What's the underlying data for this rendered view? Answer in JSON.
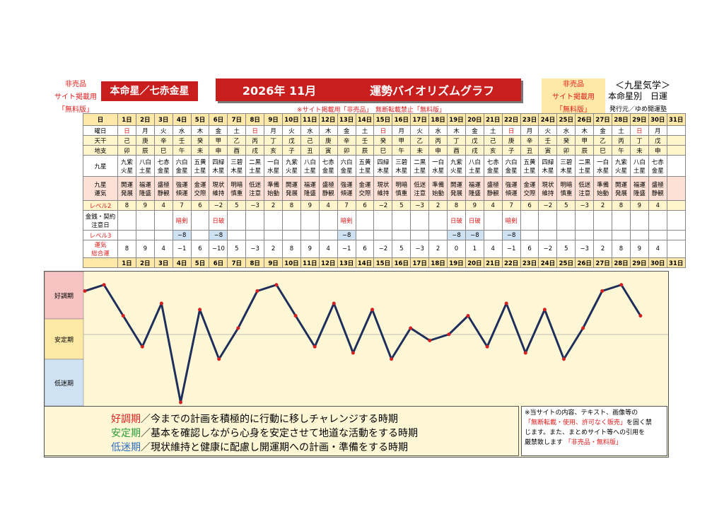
{
  "header": {
    "left_note": [
      "非売品",
      "サイト掲載用",
      "「無料版」"
    ],
    "honmei": "本命星／七赤金星",
    "title_year": "2026年 11月",
    "title_main": "運勢バイオリズムグラフ",
    "right_note": [
      "非売品",
      "サイト掲載用",
      "「無料版」"
    ],
    "kyusei": "＜九星気学＞",
    "honmei_betsu": "本命星別　日運",
    "publisher": "発行元／ゆめ開運塾",
    "warning": "※サイト掲載用「非売品」　無断転載禁止「無料版」"
  },
  "row_labels": {
    "day": "日",
    "weekday": "曜日",
    "tenkan": "天干",
    "chishi": "地支",
    "kyusei": "九星",
    "unki": [
      "九星",
      "運気"
    ],
    "level2": "レベル2",
    "caution": [
      "金銭・契約",
      "注意日"
    ],
    "level3": "レベル3",
    "total": [
      "運気",
      "総合運"
    ]
  },
  "days": [
    "1日",
    "2日",
    "3日",
    "4日",
    "5日",
    "6日",
    "7日",
    "8日",
    "9日",
    "10日",
    "11日",
    "12日",
    "13日",
    "14日",
    "15日",
    "16日",
    "17日",
    "18日",
    "19日",
    "20日",
    "21日",
    "22日",
    "23日",
    "24日",
    "25日",
    "26日",
    "27日",
    "28日",
    "29日",
    "30日",
    "31日"
  ],
  "weekdays": [
    "日",
    "月",
    "火",
    "水",
    "木",
    "金",
    "土",
    "日",
    "月",
    "火",
    "水",
    "木",
    "金",
    "土",
    "日",
    "月",
    "火",
    "水",
    "木",
    "金",
    "土",
    "日",
    "月",
    "火",
    "水",
    "木",
    "金",
    "土",
    "日",
    "月",
    ""
  ],
  "tenkan": [
    "己",
    "庚",
    "辛",
    "壬",
    "癸",
    "甲",
    "乙",
    "丙",
    "丁",
    "戊",
    "己",
    "庚",
    "辛",
    "壬",
    "癸",
    "甲",
    "乙",
    "丙",
    "丁",
    "戊",
    "己",
    "庚",
    "辛",
    "壬",
    "癸",
    "甲",
    "乙",
    "丙",
    "丁",
    "戊",
    ""
  ],
  "chishi": [
    "卯",
    "辰",
    "巳",
    "午",
    "未",
    "申",
    "酉",
    "戌",
    "亥",
    "子",
    "丑",
    "寅",
    "卯",
    "辰",
    "巳",
    "午",
    "未",
    "申",
    "酉",
    "戌",
    "亥",
    "子",
    "丑",
    "寅",
    "卯",
    "辰",
    "巳",
    "午",
    "未",
    "申",
    ""
  ],
  "kyusei": [
    [
      "九紫",
      "火星"
    ],
    [
      "八白",
      "土星"
    ],
    [
      "七赤",
      "金星"
    ],
    [
      "六白",
      "金星"
    ],
    [
      "五黄",
      "土星"
    ],
    [
      "四緑",
      "木星"
    ],
    [
      "三碧",
      "木星"
    ],
    [
      "二黒",
      "土星"
    ],
    [
      "一白",
      "水星"
    ],
    [
      "九紫",
      "火星"
    ],
    [
      "八白",
      "土星"
    ],
    [
      "七赤",
      "金星"
    ],
    [
      "六白",
      "金星"
    ],
    [
      "五黄",
      "土星"
    ],
    [
      "四緑",
      "木星"
    ],
    [
      "三碧",
      "木星"
    ],
    [
      "二黒",
      "土星"
    ],
    [
      "一白",
      "水星"
    ],
    [
      "九紫",
      "火星"
    ],
    [
      "八白",
      "土星"
    ],
    [
      "七赤",
      "金星"
    ],
    [
      "六白",
      "金星"
    ],
    [
      "五黄",
      "土星"
    ],
    [
      "四緑",
      "木星"
    ],
    [
      "三碧",
      "木星"
    ],
    [
      "二黒",
      "土星"
    ],
    [
      "一白",
      "水星"
    ],
    [
      "九紫",
      "火星"
    ],
    [
      "八白",
      "土星"
    ],
    [
      "七赤",
      "金星"
    ],
    [
      "",
      ""
    ]
  ],
  "unki": [
    [
      "開運",
      "発展"
    ],
    [
      "福運",
      "隆盛"
    ],
    [
      "盛極",
      "静観"
    ],
    [
      "強運",
      "傾運"
    ],
    [
      "金運",
      "交際"
    ],
    [
      "現状",
      "維持"
    ],
    [
      "明暗",
      "慎重"
    ],
    [
      "低迷",
      "注意"
    ],
    [
      "準備",
      "始動"
    ],
    [
      "開運",
      "発展"
    ],
    [
      "福運",
      "隆盛"
    ],
    [
      "盛極",
      "静観"
    ],
    [
      "強運",
      "傾運"
    ],
    [
      "金運",
      "交際"
    ],
    [
      "現状",
      "維持"
    ],
    [
      "明暗",
      "慎重"
    ],
    [
      "低迷",
      "注意"
    ],
    [
      "準備",
      "始動"
    ],
    [
      "開運",
      "発展"
    ],
    [
      "福運",
      "隆盛"
    ],
    [
      "盛極",
      "静観"
    ],
    [
      "強運",
      "傾運"
    ],
    [
      "金運",
      "交際"
    ],
    [
      "現状",
      "維持"
    ],
    [
      "明暗",
      "慎重"
    ],
    [
      "低迷",
      "注意"
    ],
    [
      "準備",
      "始動"
    ],
    [
      "開運",
      "発展"
    ],
    [
      "福運",
      "隆盛"
    ],
    [
      "盛極",
      "静観"
    ],
    [
      "",
      ""
    ]
  ],
  "level2": [
    "8",
    "9",
    "4",
    "7",
    "6",
    "−2",
    "5",
    "−3",
    "2",
    "8",
    "9",
    "4",
    "7",
    "6",
    "−2",
    "5",
    "−3",
    "2",
    "8",
    "9",
    "4",
    "7",
    "6",
    "−2",
    "5",
    "−3",
    "2",
    "8",
    "9",
    "4",
    ""
  ],
  "caution": [
    "",
    "",
    "",
    "暗剣",
    "",
    "日破",
    "",
    "",
    "",
    "",
    "",
    "",
    "暗剣",
    "",
    "",
    "",
    "",
    "",
    "日破",
    "日破",
    "",
    "暗剣",
    "",
    "",
    "",
    "",
    "",
    "",
    "",
    "",
    ""
  ],
  "level3": [
    "",
    "",
    "",
    "−8",
    "",
    "−8",
    "",
    "",
    "",
    "",
    "",
    "",
    "−8",
    "",
    "",
    "",
    "",
    "",
    "−8",
    "−8",
    "",
    "−8",
    "",
    "",
    "",
    "",
    "",
    "",
    "",
    "",
    ""
  ],
  "total": [
    "8",
    "9",
    "4",
    "−1",
    "6",
    "−10",
    "5",
    "−3",
    "2",
    "8",
    "9",
    "4",
    "−1",
    "6",
    "−2",
    "5",
    "−3",
    "2",
    "0",
    "1",
    "4",
    "−1",
    "6",
    "−2",
    "5",
    "−3",
    "2",
    "8",
    "9",
    "4",
    ""
  ],
  "zones": {
    "good": "好調期",
    "stable": "安定期",
    "low": "低迷期"
  },
  "legend": {
    "good_term": "好調期",
    "good_text": "／今までの計画を積極的に行動に移しチャレンジする時期",
    "stable_term": "安定期",
    "stable_text": "／基本を確認しながら心身を安定させて地道な活動をする時期",
    "low_term": "低迷期",
    "low_text": "／現状維持と健康に配慮し開運期への計画・準備をする時期"
  },
  "notice": {
    "line1": "※当サイトの内容、テキスト、画像等の",
    "line2_red": "「無断転載・使用、許可なく販売」",
    "line2_end": "を固く禁",
    "line3": "じます。また、まとめサイト等への引用を",
    "line4_start": "厳禁致します",
    "line4_red": "「非売品・無料版」"
  },
  "colors": {
    "red": "#c81e1e",
    "line": "#1f2f5c",
    "point": "#d42020",
    "good": "#f6c2c2",
    "stable": "#fde9a6",
    "low": "#cfe2f3"
  },
  "chart_data": {
    "type": "line",
    "categories": [
      "1",
      "2",
      "3",
      "4",
      "5",
      "6",
      "7",
      "8",
      "9",
      "10",
      "11",
      "12",
      "13",
      "14",
      "15",
      "16",
      "17",
      "18",
      "19",
      "20",
      "21",
      "22",
      "23",
      "24",
      "25",
      "26",
      "27",
      "28",
      "29",
      "30"
    ],
    "series": [
      {
        "values": [
          8,
          9,
          4,
          -1,
          6,
          -10,
          5,
          -3,
          2,
          8,
          9,
          4,
          -1,
          6,
          -2,
          5,
          -3,
          2,
          0,
          1,
          4,
          -1,
          6,
          -2,
          5,
          -3,
          2,
          8,
          9,
          4
        ]
      }
    ],
    "ylim": [
      -10,
      10
    ]
  }
}
